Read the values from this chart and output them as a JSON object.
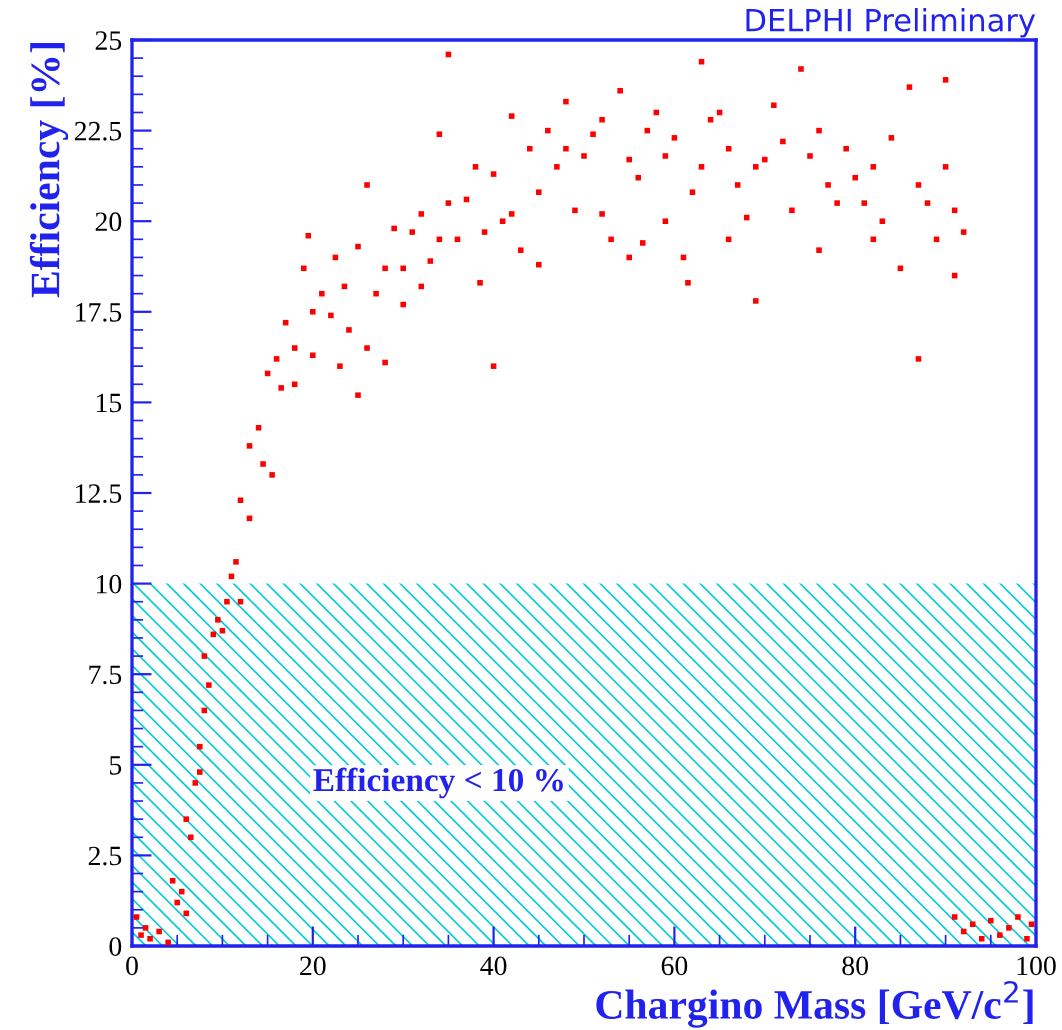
{
  "chart_data": {
    "type": "scatter",
    "xlabel": "Chargino Mass [GeV/c$^{2}$]",
    "ylabel": "Efficiency [%]",
    "annotations": [
      "DELPHI Preliminary"
    ],
    "xlim": [
      0,
      100
    ],
    "ylim": [
      0,
      25
    ],
    "xticks": [
      0,
      20,
      40,
      60,
      80,
      100
    ],
    "yticks": [
      0,
      2.5,
      5,
      7.5,
      10,
      12.5,
      15,
      17.5,
      20,
      22.5,
      25
    ],
    "grid": false,
    "marker": "square",
    "bands": [
      {
        "axis": "y",
        "from": 0,
        "to": 10,
        "label": "Efficiency < 10 %",
        "color": "#00ccdd"
      }
    ],
    "series": [
      {
        "color": "#ff0000",
        "x": [
          0.5,
          1,
          1.5,
          2,
          3,
          4,
          4.5,
          5,
          5.5,
          6,
          6,
          6.5,
          7,
          7.5,
          7.5,
          8,
          8.5,
          8,
          9,
          9.5,
          10,
          10.5,
          11,
          11.5,
          12,
          12,
          13,
          13,
          14,
          14.5,
          15,
          15.5,
          16,
          16.5,
          17,
          18,
          18,
          19,
          19.5,
          20,
          20,
          21,
          22,
          22.5,
          23,
          23.5,
          24,
          25,
          25,
          26,
          26,
          27,
          28,
          28,
          29,
          30,
          30,
          31,
          32,
          32,
          33,
          34,
          34,
          35,
          35,
          36,
          37,
          38,
          38.5,
          39,
          40,
          40,
          41,
          42,
          42,
          43,
          44,
          45,
          45,
          46,
          47,
          48,
          48,
          49,
          50,
          51,
          52,
          52,
          53,
          54,
          55,
          55,
          56,
          56.5,
          57,
          58,
          59,
          59,
          60,
          61,
          61.5,
          62,
          63,
          63,
          64,
          65,
          66,
          66,
          67,
          68,
          69,
          69,
          70,
          71,
          72,
          73,
          74,
          75,
          76,
          76,
          77,
          78,
          79,
          80,
          81,
          82,
          82,
          83,
          84,
          85,
          86,
          87,
          87,
          88,
          89,
          90,
          90,
          91,
          91,
          92,
          91,
          92,
          93,
          94,
          95,
          96,
          97,
          98,
          99,
          99.5
        ],
        "values": [
          0.8,
          0.3,
          0.5,
          0.2,
          0.4,
          0.1,
          1.8,
          1.2,
          1.5,
          0.9,
          3.5,
          3,
          4.5,
          4.8,
          5.5,
          6.5,
          7.2,
          8,
          8.6,
          9,
          8.7,
          9.5,
          10.2,
          10.6,
          9.5,
          12.3,
          11.8,
          13.8,
          14.3,
          13.3,
          15.8,
          13,
          16.2,
          15.4,
          17.2,
          16.5,
          15.5,
          18.7,
          19.6,
          17.5,
          16.3,
          18,
          17.4,
          19,
          16,
          18.2,
          17,
          19.3,
          15.2,
          16.5,
          21,
          18,
          18.7,
          16.1,
          19.8,
          17.7,
          18.7,
          19.7,
          20.2,
          18.2,
          18.9,
          19.5,
          22.4,
          24.6,
          20.5,
          19.5,
          20.6,
          21.5,
          18.3,
          19.7,
          21.3,
          16,
          20,
          22.9,
          20.2,
          19.2,
          22,
          20.8,
          18.8,
          22.5,
          21.5,
          23.3,
          22,
          20.3,
          21.8,
          22.4,
          20.2,
          22.8,
          19.5,
          23.6,
          21.7,
          19,
          21.2,
          19.4,
          22.5,
          23,
          20,
          21.8,
          22.3,
          19,
          18.3,
          20.8,
          24.4,
          21.5,
          22.8,
          23,
          19.5,
          22,
          21,
          20.1,
          21.5,
          17.8,
          21.7,
          23.2,
          22.2,
          20.3,
          24.2,
          21.8,
          22.5,
          19.2,
          21,
          20.5,
          22,
          21.2,
          20.5,
          19.5,
          21.5,
          20,
          22.3,
          18.7,
          23.7,
          21,
          16.2,
          20.5,
          19.5,
          23.9,
          21.5,
          18.5,
          20.3,
          19.7,
          0.8,
          0.4,
          0.6,
          0.2,
          0.7,
          0.3,
          0.5,
          0.8,
          0.2,
          0.6
        ]
      }
    ]
  }
}
